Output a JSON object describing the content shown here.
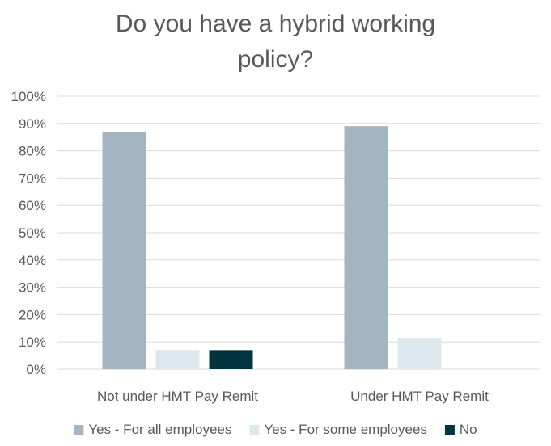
{
  "chart_data": {
    "type": "bar",
    "title": "Do you have a hybrid working policy?",
    "categories": [
      "Not under HMT Pay Remit",
      "Under HMT Pay Remit"
    ],
    "series": [
      {
        "name": "Yes - For all employees",
        "values": [
          87,
          89
        ],
        "color": "#a4b4c1"
      },
      {
        "name": "Yes - For some employees",
        "values": [
          7,
          11.5
        ],
        "color": "#dde7ee"
      },
      {
        "name": "No",
        "values": [
          7,
          0
        ],
        "color": "#003540"
      }
    ],
    "ylim": [
      0,
      100
    ],
    "yticks": [
      0,
      10,
      20,
      30,
      40,
      50,
      60,
      70,
      80,
      90,
      100
    ],
    "y_format": "percent",
    "grid": true,
    "legend_position": "bottom"
  }
}
